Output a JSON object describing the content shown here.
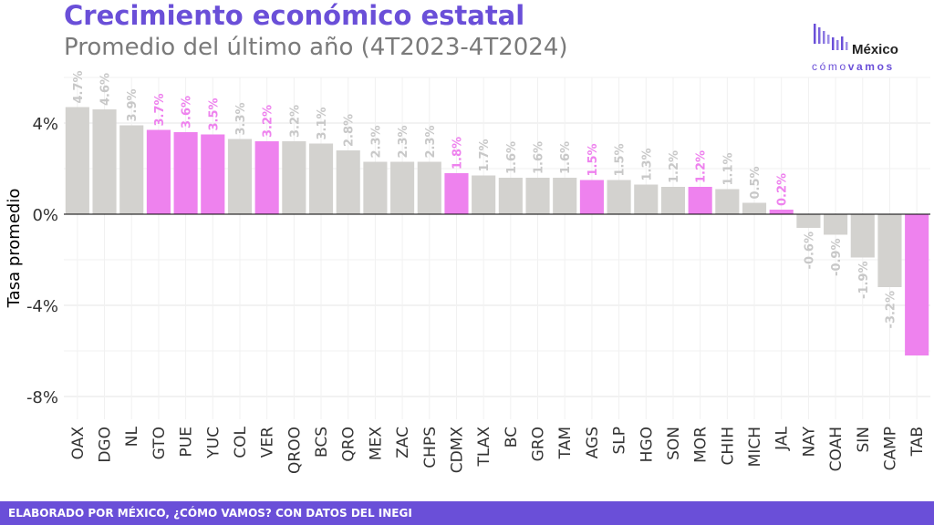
{
  "title": "Crecimiento económico estatal",
  "subtitle": "Promedio del último año (4T2023-4T2024)",
  "logo": {
    "name": "México",
    "tag_light": "cómo",
    "tag_bold": "vamos"
  },
  "footer": "ELABORADO POR MÉXICO, ¿CÓMO VAMOS? CON DATOS DEL INEGI",
  "colors": {
    "gray": "#d3d2cf",
    "highlight": "#ee82ee",
    "brand": "#6a4fd8",
    "label_gray": "#c8c8c8"
  },
  "chart_data": {
    "type": "bar",
    "title": "Crecimiento económico estatal",
    "subtitle": "Promedio del último año (4T2023-4T2024)",
    "xlabel": "",
    "ylabel": "Tasa promedio",
    "ylim": [
      -9,
      6
    ],
    "yticks": [
      4,
      0,
      -4,
      -8
    ],
    "ytick_labels": [
      "4%",
      "0%",
      "-4%",
      "-8%"
    ],
    "grid": true,
    "categories": [
      "OAX",
      "DGO",
      "NL",
      "GTO",
      "PUE",
      "YUC",
      "COL",
      "VER",
      "QROO",
      "BCS",
      "QRO",
      "MEX",
      "ZAC",
      "CHPS",
      "CDMX",
      "TLAX",
      "BC",
      "GRO",
      "TAM",
      "AGS",
      "SLP",
      "HGO",
      "SON",
      "MOR",
      "CHIH",
      "MICH",
      "JAL",
      "NAY",
      "COAH",
      "SIN",
      "CAMP",
      "TAB"
    ],
    "values": [
      4.7,
      4.6,
      3.9,
      3.7,
      3.6,
      3.5,
      3.3,
      3.2,
      3.2,
      3.1,
      2.8,
      2.3,
      2.3,
      2.3,
      1.8,
      1.7,
      1.6,
      1.6,
      1.6,
      1.5,
      1.5,
      1.3,
      1.2,
      1.2,
      1.1,
      0.5,
      0.2,
      -0.6,
      -0.9,
      -1.9,
      -3.2,
      -6.2
    ],
    "labels": [
      "4.7%",
      "4.6%",
      "3.9%",
      "3.7%",
      "3.6%",
      "3.5%",
      "3.3%",
      "3.2%",
      "3.2%",
      "3.1%",
      "2.8%",
      "2.3%",
      "2.3%",
      "2.3%",
      "1.8%",
      "1.7%",
      "1.6%",
      "1.6%",
      "1.6%",
      "1.5%",
      "1.5%",
      "1.3%",
      "1.2%",
      "1.2%",
      "1.1%",
      "0.5%",
      "0.2%",
      "-0.6%",
      "-0.9%",
      "-1.9%",
      "-3.2%",
      ""
    ],
    "highlighted": [
      false,
      false,
      false,
      true,
      true,
      true,
      false,
      true,
      false,
      false,
      false,
      false,
      false,
      false,
      true,
      false,
      false,
      false,
      false,
      true,
      false,
      false,
      false,
      true,
      false,
      false,
      true,
      false,
      false,
      false,
      false,
      true
    ]
  }
}
